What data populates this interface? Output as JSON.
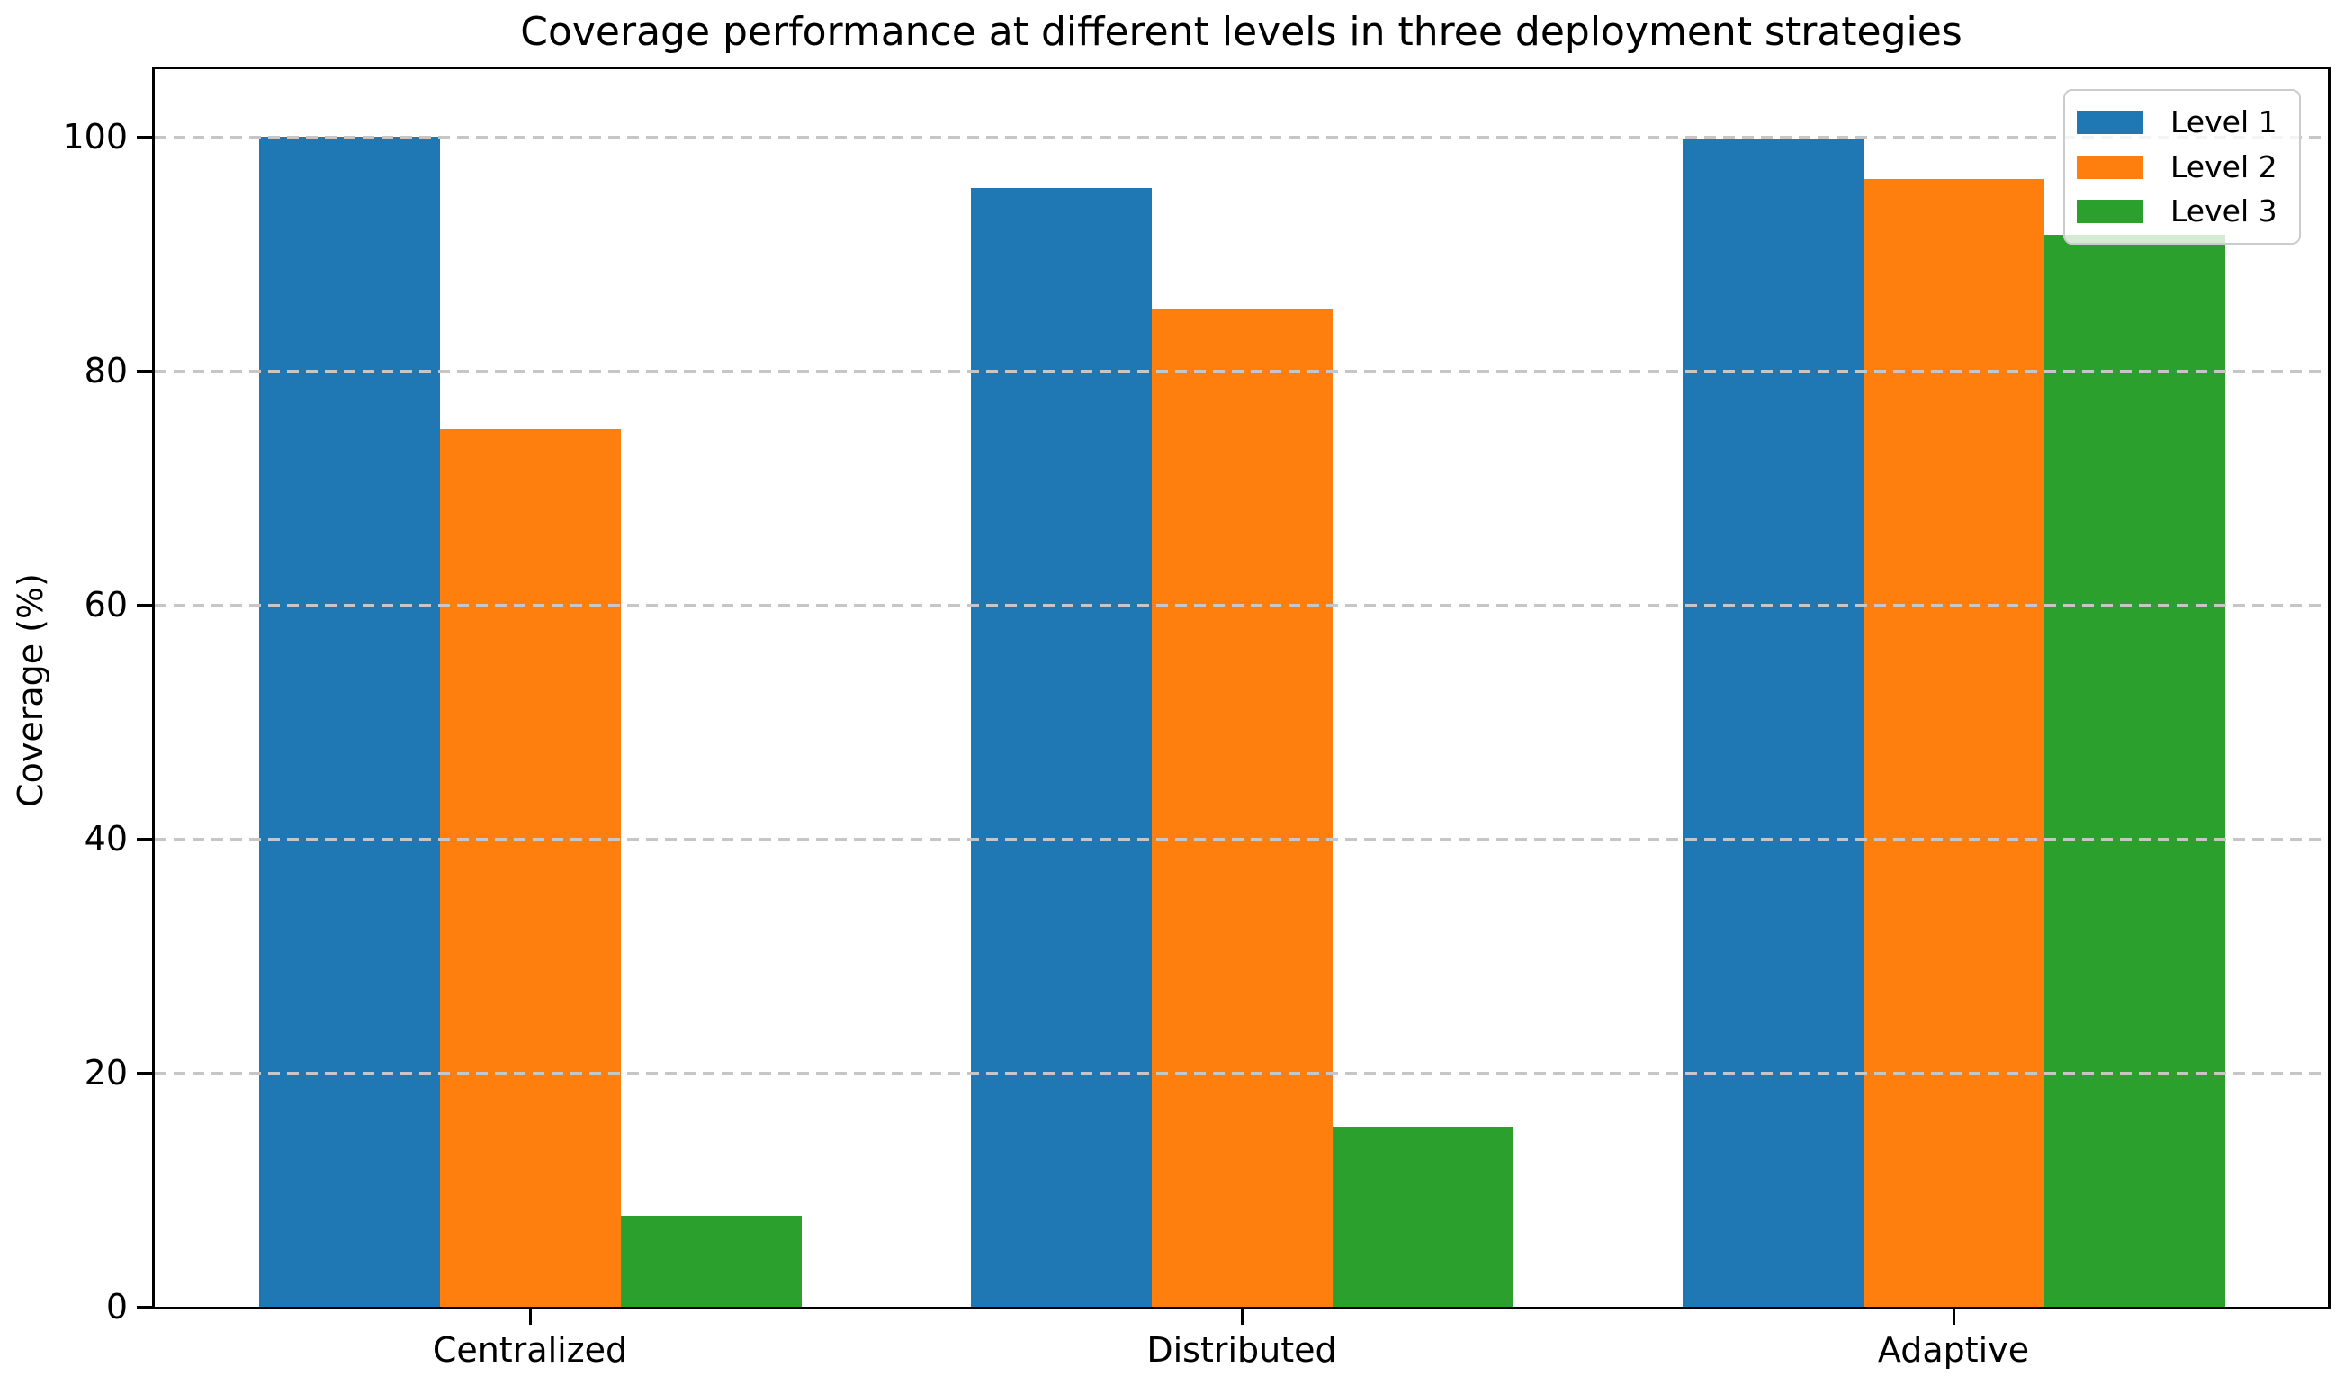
{
  "chart_data": {
    "type": "bar",
    "title": "Coverage performance at different levels in three deployment strategies",
    "xlabel": "",
    "ylabel": "Coverage (%)",
    "categories": [
      "Centralized",
      "Distributed",
      "Adaptive"
    ],
    "series": [
      {
        "name": "Level 1",
        "color": "#1f77b4",
        "values": [
          100.0,
          95.6,
          99.8
        ]
      },
      {
        "name": "Level 2",
        "color": "#ff7f0e",
        "values": [
          75.0,
          85.3,
          96.4
        ]
      },
      {
        "name": "Level 3",
        "color": "#2ca02c",
        "values": [
          7.8,
          15.4,
          91.6
        ]
      }
    ],
    "yticks": [
      0,
      20,
      40,
      60,
      80,
      100
    ],
    "ylim": [
      0,
      105.77
    ],
    "grid": "horizontal-dashed",
    "gridline_color": "#c6c6c6",
    "legend_position": "upper right",
    "background_color": "#ffffff",
    "axis_color": "#000000"
  }
}
